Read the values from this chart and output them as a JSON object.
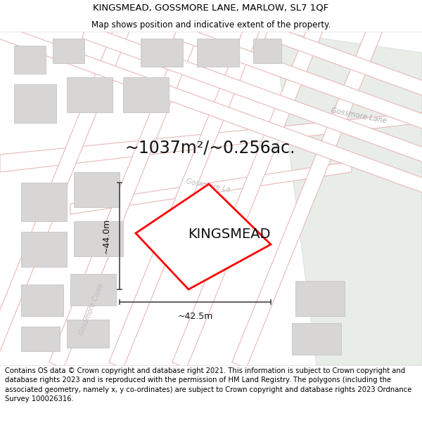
{
  "title_line1": "KINGSMEAD, GOSSMORE LANE, MARLOW, SL7 1QF",
  "title_line2": "Map shows position and indicative extent of the property.",
  "footer_text": "Contains OS data © Crown copyright and database right 2021. This information is subject to Crown copyright and database rights 2023 and is reproduced with the permission of HM Land Registry. The polygons (including the associated geometry, namely x, y co-ordinates) are subject to Crown copyright and database rights 2023 Ordnance Survey 100026316.",
  "area_text": "~1037m²/~0.256ac.",
  "label_text": "KINGSMEAD",
  "dim_horizontal": "~42.5m",
  "dim_vertical": "~44.0m",
  "map_bg": "#f2f0f0",
  "road_fill": "#ffffff",
  "road_edge": "#e8b8b8",
  "building_fill": "#d8d5d5",
  "building_edge": "#c8c5c5",
  "green_fill": "#e8ede8",
  "green_edge": "#d0d8d0",
  "plot_color": "#ff0000",
  "title_fontsize": 9.5,
  "subtitle_fontsize": 8.5,
  "label_fontsize": 14,
  "area_fontsize": 17,
  "footer_fontsize": 7.2,
  "road_lw": 0.8,
  "plot_lw": 2.0
}
